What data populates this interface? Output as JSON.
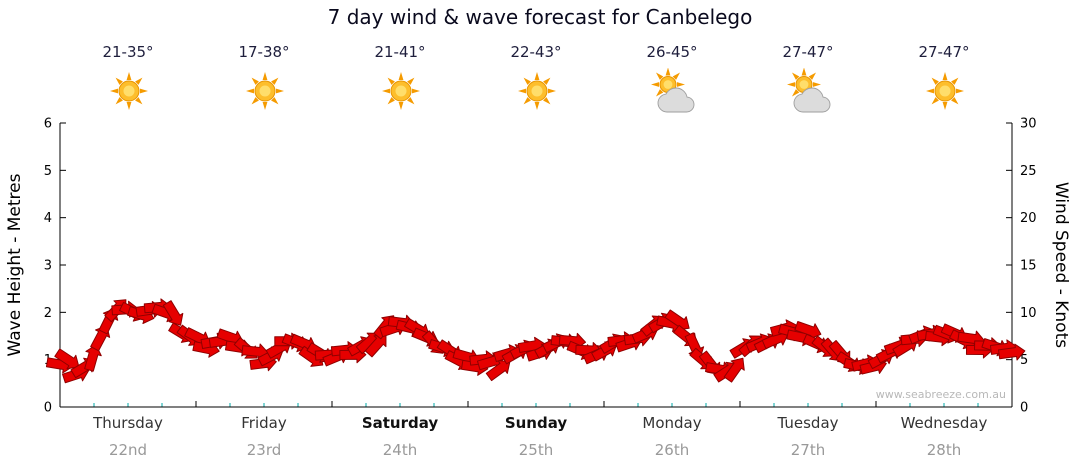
{
  "title": "7 day wind & wave forecast for Canbelego",
  "watermark": "www.seabreeze.com.au",
  "days": [
    {
      "temp": "21-35°",
      "icon": "sun-icon",
      "name": "Thursday",
      "date": "22nd",
      "bold": false
    },
    {
      "temp": "17-38°",
      "icon": "sun-icon",
      "name": "Friday",
      "date": "23rd",
      "bold": false
    },
    {
      "temp": "21-41°",
      "icon": "sun-icon",
      "name": "Saturday",
      "date": "24th",
      "bold": true
    },
    {
      "temp": "22-43°",
      "icon": "sun-icon",
      "name": "Sunday",
      "date": "25th",
      "bold": true
    },
    {
      "temp": "26-45°",
      "icon": "sun-cloud-icon",
      "name": "Monday",
      "date": "26th",
      "bold": false
    },
    {
      "temp": "27-47°",
      "icon": "sun-cloud-icon",
      "name": "Tuesday",
      "date": "27th",
      "bold": false
    },
    {
      "temp": "27-47°",
      "icon": "sun-icon",
      "name": "Wednesday",
      "date": "28th",
      "bold": false
    }
  ],
  "chart_data": {
    "type": "line",
    "title": "7 day wind & wave forecast for Canbelego",
    "categories": [
      "Thursday 22nd",
      "Friday 23rd",
      "Saturday 24th",
      "Sunday 25th",
      "Monday 26th",
      "Tuesday 27th",
      "Wednesday 28th"
    ],
    "points_per_day": 8,
    "series": [
      {
        "name": "Wind Speed",
        "units": "knots",
        "values": [
          5.0,
          3.8,
          5.5,
          10.5,
          11.0,
          10.0,
          10.5,
          8.5,
          7.0,
          6.5,
          7.0,
          6.0,
          5.0,
          6.3,
          6.6,
          5.4,
          5.2,
          5.8,
          6.2,
          7.8,
          8.8,
          8.2,
          6.8,
          5.6,
          4.6,
          4.2,
          4.8,
          5.6,
          6.2,
          6.6,
          7.0,
          6.0,
          6.4,
          7.0,
          7.4,
          8.0,
          9.6,
          7.2,
          5.0,
          3.8,
          5.2,
          6.6,
          7.6,
          8.0,
          7.6,
          7.0,
          5.6,
          4.4,
          4.8,
          6.0,
          6.8,
          7.4,
          7.6,
          7.2,
          6.6,
          6.2,
          6.0
        ]
      }
    ],
    "left_axis": {
      "label": "Wave Height - Metres",
      "range": [
        0,
        6
      ],
      "ticks": [
        0,
        1,
        2,
        3,
        4,
        5,
        6
      ]
    },
    "right_axis": {
      "label": "Wind Speed - Knots",
      "range": [
        0,
        30
      ],
      "ticks": [
        0,
        5,
        10,
        15,
        20,
        25,
        30
      ]
    },
    "accent_color": "#E60000",
    "accent_dark": "#8F0000",
    "minor_tick_color": "#00AAAA",
    "sun_color": "#FDBE2C",
    "sun_inner_color": "#FFDE6B",
    "ray_color": "#F59B00",
    "cloud_color": "#DCDCDC",
    "grid": false,
    "legend": false
  }
}
